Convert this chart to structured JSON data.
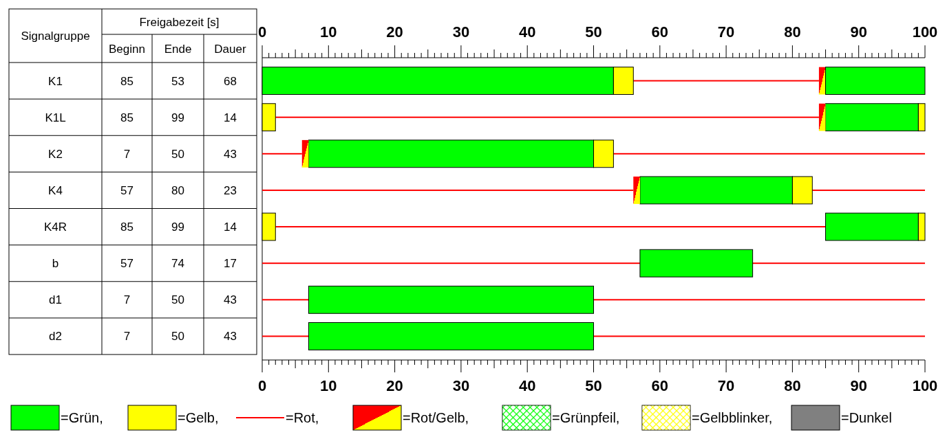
{
  "chart_data": [
    {
      "type": "other",
      "title": "Freigabezeit [s]",
      "ylabel": "Signalgruppe",
      "categories": [
        "K1",
        "K1L",
        "K2",
        "K4",
        "K4R",
        "b",
        "d1",
        "d2"
      ],
      "data_labels": true,
      "series": [
        {
          "name": "Beginn",
          "values": [
            85,
            85,
            7,
            57,
            85,
            57,
            7,
            7
          ]
        },
        {
          "name": "Ende",
          "values": [
            53,
            99,
            50,
            80,
            99,
            74,
            50,
            50
          ]
        },
        {
          "name": "Dauer",
          "values": [
            68,
            14,
            43,
            23,
            14,
            17,
            43,
            43
          ]
        }
      ]
    },
    {
      "type": "bar",
      "orientation": "horizontal",
      "categories": [
        null,
        null,
        null,
        null,
        null,
        null,
        null,
        null
      ],
      "legend": "bottom",
      "xlim": [
        0,
        100
      ],
      "x2lim": [
        0,
        100
      ],
      "xticks": [
        0,
        {
          "value": 1,
          "label": null
        },
        {
          "value": 2,
          "label": null
        },
        {
          "value": 3,
          "label": null
        },
        {
          "value": 4,
          "label": null
        },
        {
          "value": 5,
          "label": null
        },
        {
          "value": 6,
          "label": null
        },
        {
          "value": 7,
          "label": null
        },
        {
          "value": 8,
          "label": null
        },
        {
          "value": 9,
          "label": null
        },
        10,
        {
          "value": 11,
          "label": null
        },
        {
          "value": 12,
          "label": null
        },
        {
          "value": 13,
          "label": null
        },
        {
          "value": 14,
          "label": null
        },
        {
          "value": 15,
          "label": null
        },
        {
          "value": 16,
          "label": null
        },
        {
          "value": 17,
          "label": null
        },
        {
          "value": 18,
          "label": null
        },
        {
          "value": 19,
          "label": null
        },
        20,
        {
          "value": 21,
          "label": null
        },
        {
          "value": 22,
          "label": null
        },
        {
          "value": 23,
          "label": null
        },
        {
          "value": 24,
          "label": null
        },
        {
          "value": 25,
          "label": null
        },
        {
          "value": 26,
          "label": null
        },
        {
          "value": 27,
          "label": null
        },
        {
          "value": 28,
          "label": null
        },
        {
          "value": 29,
          "label": null
        },
        30,
        {
          "value": 31,
          "label": null
        },
        {
          "value": 32,
          "label": null
        },
        {
          "value": 33,
          "label": null
        },
        {
          "value": 34,
          "label": null
        },
        {
          "value": 35,
          "label": null
        },
        {
          "value": 36,
          "label": null
        },
        {
          "value": 37,
          "label": null
        },
        {
          "value": 38,
          "label": null
        },
        {
          "value": 39,
          "label": null
        },
        40,
        {
          "value": 41,
          "label": null
        },
        {
          "value": 42,
          "label": null
        },
        {
          "value": 43,
          "label": null
        },
        {
          "value": 44,
          "label": null
        },
        {
          "value": 45,
          "label": null
        },
        {
          "value": 46,
          "label": null
        },
        {
          "value": 47,
          "label": null
        },
        {
          "value": 48,
          "label": null
        },
        {
          "value": 49,
          "label": null
        },
        50,
        {
          "value": 51,
          "label": null
        },
        {
          "value": 52,
          "label": null
        },
        {
          "value": 53,
          "label": null
        },
        {
          "value": 54,
          "label": null
        },
        {
          "value": 55,
          "label": null
        },
        {
          "value": 56,
          "label": null
        },
        {
          "value": 57,
          "label": null
        },
        {
          "value": 58,
          "label": null
        },
        {
          "value": 59,
          "label": null
        },
        60,
        {
          "value": 61,
          "label": null
        },
        {
          "value": 62,
          "label": null
        },
        {
          "value": 63,
          "label": null
        },
        {
          "value": 64,
          "label": null
        },
        {
          "value": 65,
          "label": null
        },
        {
          "value": 66,
          "label": null
        },
        {
          "value": 67,
          "label": null
        },
        {
          "value": 68,
          "label": null
        },
        {
          "value": 69,
          "label": null
        },
        70,
        {
          "value": 71,
          "label": null
        },
        {
          "value": 72,
          "label": null
        },
        {
          "value": 73,
          "label": null
        },
        {
          "value": 74,
          "label": null
        },
        {
          "value": 75,
          "label": null
        },
        {
          "value": 76,
          "label": null
        },
        {
          "value": 77,
          "label": null
        },
        {
          "value": 78,
          "label": null
        },
        {
          "value": 79,
          "label": null
        },
        80,
        {
          "value": 81,
          "label": null
        },
        {
          "value": 82,
          "label": null
        },
        {
          "value": 83,
          "label": null
        },
        {
          "value": 84,
          "label": null
        },
        {
          "value": 85,
          "label": null
        },
        {
          "value": 86,
          "label": null
        },
        {
          "value": 87,
          "label": null
        },
        {
          "value": 88,
          "label": null
        },
        {
          "value": 89,
          "label": null
        },
        90,
        {
          "value": 91,
          "label": null
        },
        {
          "value": 92,
          "label": null
        },
        {
          "value": 93,
          "label": null
        },
        {
          "value": 94,
          "label": null
        },
        {
          "value": 95,
          "label": null
        },
        {
          "value": 96,
          "label": null
        },
        {
          "value": 97,
          "label": null
        },
        {
          "value": 98,
          "label": null
        },
        {
          "value": 99,
          "label": null
        },
        100
      ],
      "x2ticks": [
        0,
        {
          "value": 1,
          "label": null
        },
        {
          "value": 2,
          "label": null
        },
        {
          "value": 3,
          "label": null
        },
        {
          "value": 4,
          "label": null
        },
        {
          "value": 5,
          "label": null
        },
        {
          "value": 6,
          "label": null
        },
        {
          "value": 7,
          "label": null
        },
        {
          "value": 8,
          "label": null
        },
        {
          "value": 9,
          "label": null
        },
        10,
        {
          "value": 11,
          "label": null
        },
        {
          "value": 12,
          "label": null
        },
        {
          "value": 13,
          "label": null
        },
        {
          "value": 14,
          "label": null
        },
        {
          "value": 15,
          "label": null
        },
        {
          "value": 16,
          "label": null
        },
        {
          "value": 17,
          "label": null
        },
        {
          "value": 18,
          "label": null
        },
        {
          "value": 19,
          "label": null
        },
        20,
        {
          "value": 21,
          "label": null
        },
        {
          "value": 22,
          "label": null
        },
        {
          "value": 23,
          "label": null
        },
        {
          "value": 24,
          "label": null
        },
        {
          "value": 25,
          "label": null
        },
        {
          "value": 26,
          "label": null
        },
        {
          "value": 27,
          "label": null
        },
        {
          "value": 28,
          "label": null
        },
        {
          "value": 29,
          "label": null
        },
        30,
        {
          "value": 31,
          "label": null
        },
        {
          "value": 32,
          "label": null
        },
        {
          "value": 33,
          "label": null
        },
        {
          "value": 34,
          "label": null
        },
        {
          "value": 35,
          "label": null
        },
        {
          "value": 36,
          "label": null
        },
        {
          "value": 37,
          "label": null
        },
        {
          "value": 38,
          "label": null
        },
        {
          "value": 39,
          "label": null
        },
        40,
        {
          "value": 41,
          "label": null
        },
        {
          "value": 42,
          "label": null
        },
        {
          "value": 43,
          "label": null
        },
        {
          "value": 44,
          "label": null
        },
        {
          "value": 45,
          "label": null
        },
        {
          "value": 46,
          "label": null
        },
        {
          "value": 47,
          "label": null
        },
        {
          "value": 48,
          "label": null
        },
        {
          "value": 49,
          "label": null
        },
        50,
        {
          "value": 51,
          "label": null
        },
        {
          "value": 52,
          "label": null
        },
        {
          "value": 53,
          "label": null
        },
        {
          "value": 54,
          "label": null
        },
        {
          "value": 55,
          "label": null
        },
        {
          "value": 56,
          "label": null
        },
        {
          "value": 57,
          "label": null
        },
        {
          "value": 58,
          "label": null
        },
        {
          "value": 59,
          "label": null
        },
        60,
        {
          "value": 61,
          "label": null
        },
        {
          "value": 62,
          "label": null
        },
        {
          "value": 63,
          "label": null
        },
        {
          "value": 64,
          "label": null
        },
        {
          "value": 65,
          "label": null
        },
        {
          "value": 66,
          "label": null
        },
        {
          "value": 67,
          "label": null
        },
        {
          "value": 68,
          "label": null
        },
        {
          "value": 69,
          "label": null
        },
        70,
        {
          "value": 71,
          "label": null
        },
        {
          "value": 72,
          "label": null
        },
        {
          "value": 73,
          "label": null
        },
        {
          "value": 74,
          "label": null
        },
        {
          "value": 75,
          "label": null
        },
        {
          "value": 76,
          "label": null
        },
        {
          "value": 77,
          "label": null
        },
        {
          "value": 78,
          "label": null
        },
        {
          "value": 79,
          "label": null
        },
        80,
        {
          "value": 81,
          "label": null
        },
        {
          "value": 82,
          "label": null
        },
        {
          "value": 83,
          "label": null
        },
        {
          "value": 84,
          "label": null
        },
        {
          "value": 85,
          "label": null
        },
        {
          "value": 86,
          "label": null
        },
        {
          "value": 87,
          "label": null
        },
        {
          "value": 88,
          "label": null
        },
        {
          "value": 89,
          "label": null
        },
        90,
        {
          "value": 91,
          "label": null
        },
        {
          "value": 92,
          "label": null
        },
        {
          "value": 93,
          "label": null
        },
        {
          "value": 94,
          "label": null
        },
        {
          "value": 95,
          "label": null
        },
        {
          "value": 96,
          "label": null
        },
        {
          "value": 97,
          "label": null
        },
        {
          "value": 98,
          "label": null
        },
        {
          "value": 99,
          "label": null
        },
        100
      ],
      "series": [
        {
          "name": "=Grün,",
          "color": "#00ff00",
          "base": [
            0,
            85,
            7,
            57,
            85,
            57,
            7,
            7
          ],
          "values": [
            53,
            14,
            43,
            23,
            14,
            17,
            43,
            43
          ]
        },
        {
          "name": "=Gelb,",
          "color": "#ffff00",
          "base": [
            53,
            0,
            50,
            80,
            0,
            null,
            null,
            null
          ],
          "values": [
            3,
            2,
            3,
            3,
            2,
            null,
            null,
            null
          ]
        },
        {
          "name": "=Rot,",
          "color": "#ff0000",
          "line_style": "solid",
          "base": [
            56,
            2,
            0,
            0,
            2,
            0,
            0,
            0
          ],
          "values": [
            28,
            82,
            6,
            56,
            83,
            57,
            7,
            7
          ]
        },
        {
          "name": "=Rot/Gelb,",
          "color": "#ff0000",
          "base": [
            84,
            84,
            6,
            56,
            null,
            null,
            null,
            null
          ],
          "values": [
            1,
            1,
            1,
            1,
            null,
            null,
            null,
            null
          ]
        },
        {
          "name": "=Grünpfeil,",
          "color": "#00ff00",
          "values": [
            null,
            null,
            null,
            null,
            null,
            null,
            null,
            null
          ]
        },
        {
          "name": "=Gelbblinker,",
          "color": "#ffff00",
          "values": [
            null,
            null,
            null,
            null,
            null,
            null,
            null,
            null
          ]
        },
        {
          "name": "=Dunkel",
          "color": "#808080",
          "values": [
            null,
            null,
            null,
            null,
            null,
            null,
            null,
            null
          ]
        },
        {
          "color": "#00ff00",
          "base": [
            85,
            null,
            null,
            null,
            null,
            null,
            null,
            null
          ],
          "values": [
            15,
            null,
            null,
            null,
            null,
            null,
            null,
            null
          ]
        },
        {
          "color": "#ffff00",
          "base": [
            null,
            99,
            null,
            null,
            99,
            null,
            null,
            null
          ],
          "values": [
            null,
            1,
            null,
            null,
            1,
            null,
            null,
            null
          ]
        },
        {
          "color": "#ff0000",
          "line_style": "solid",
          "base": [
            null,
            null,
            53,
            83,
            null,
            74,
            50,
            50
          ],
          "values": [
            null,
            null,
            47,
            17,
            null,
            26,
            50,
            50
          ]
        }
      ]
    }
  ]
}
